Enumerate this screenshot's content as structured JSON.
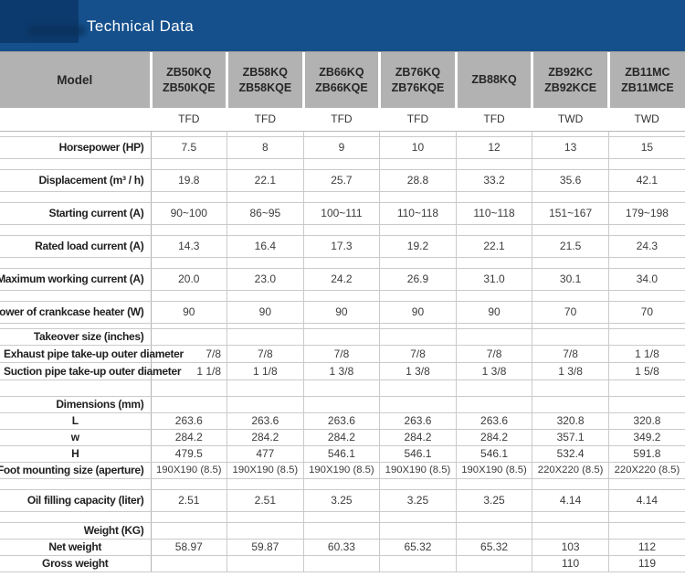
{
  "banner": {
    "title": "Technical Data"
  },
  "colors": {
    "banner_blue": "#15508c",
    "logo_navy": "#0c3a6e",
    "header_gray": "#b2b2b2",
    "grid_line": "#cacaca",
    "title_text": "#ffffff",
    "label_text": "#1f1f1f",
    "value_text": "#3c3c3c"
  },
  "table": {
    "model_label": "Model",
    "models": [
      [
        "ZB50KQ",
        "ZB50KQE"
      ],
      [
        "ZB58KQ",
        "ZB58KQE"
      ],
      [
        "ZB66KQ",
        "ZB66KQE"
      ],
      [
        "ZB76KQ",
        "ZB76KQE"
      ],
      [
        "ZB88KQ"
      ],
      [
        "ZB92KC",
        "ZB92KCE"
      ],
      [
        "ZB11MC",
        "ZB11MCE"
      ]
    ],
    "variants": [
      "TFD",
      "TFD",
      "TFD",
      "TFD",
      "TFD",
      "TWD",
      "TWD"
    ],
    "rows": [
      {
        "t": "sp_sm"
      },
      {
        "t": "item",
        "label": "Horsepower (HP)",
        "values": [
          "7.5",
          "8",
          "9",
          "10",
          "12",
          "13",
          "15"
        ]
      },
      {
        "t": "sp"
      },
      {
        "t": "item",
        "label": "Displacement (m³ / h)",
        "values": [
          "19.8",
          "22.1",
          "25.7",
          "28.8",
          "33.2",
          "35.6",
          "42.1"
        ]
      },
      {
        "t": "sp"
      },
      {
        "t": "item",
        "label": "Starting current (A)",
        "values": [
          "90~100",
          "86~95",
          "100~111",
          "110~118",
          "110~118",
          "151~167",
          "179~198"
        ]
      },
      {
        "t": "sp"
      },
      {
        "t": "item",
        "label": "Rated load current (A)",
        "values": [
          "14.3",
          "16.4",
          "17.3",
          "19.2",
          "22.1",
          "21.5",
          "24.3"
        ]
      },
      {
        "t": "sp"
      },
      {
        "t": "item",
        "label": "Maximum working current (A)",
        "values": [
          "20.0",
          "23.0",
          "24.2",
          "26.9",
          "31.0",
          "30.1",
          "34.0"
        ]
      },
      {
        "t": "sp"
      },
      {
        "t": "item",
        "label": "Power of crankcase heater (W)",
        "values": [
          "90",
          "90",
          "90",
          "90",
          "90",
          "70",
          "70"
        ]
      },
      {
        "t": "sp_sm"
      },
      {
        "t": "section",
        "label": "Takeover size (inches)",
        "values": [
          "",
          "",
          "",
          "",
          "",
          "",
          ""
        ]
      },
      {
        "t": "pipe",
        "label": "Exhaust pipe take-up outer diameter",
        "values": [
          "7/8",
          "7/8",
          "7/8",
          "7/8",
          "7/8",
          "7/8",
          "1 1/8"
        ]
      },
      {
        "t": "pipe",
        "label": "Suction pipe take-up outer diameter",
        "values": [
          "1 1/8",
          "1 1/8",
          "1 3/8",
          "1 3/8",
          "1 3/8",
          "1 3/8",
          "1 5/8"
        ]
      },
      {
        "t": "sp_lg"
      },
      {
        "t": "section",
        "label": "Dimensions  (mm)",
        "values": [
          "",
          "",
          "",
          "",
          "",
          "",
          ""
        ]
      },
      {
        "t": "sub",
        "label": "L",
        "values": [
          "263.6",
          "263.6",
          "263.6",
          "263.6",
          "263.6",
          "320.8",
          "320.8"
        ]
      },
      {
        "t": "sub",
        "label": "w",
        "values": [
          "284.2",
          "284.2",
          "284.2",
          "284.2",
          "284.2",
          "357.1",
          "349.2"
        ]
      },
      {
        "t": "sub",
        "label": "H",
        "values": [
          "479.5",
          "477",
          "546.1",
          "546.1",
          "546.1",
          "532.4",
          "591.8"
        ]
      },
      {
        "t": "item2",
        "label": "Foot mounting size (aperture)",
        "values": [
          "190X190 (8.5)",
          "190X190 (8.5)",
          "190X190 (8.5)",
          "190X190 (8.5)",
          "190X190 (8.5)",
          "220X220 (8.5)",
          "220X220 (8.5)"
        ]
      },
      {
        "t": "sp"
      },
      {
        "t": "item",
        "label": "Oil filling capacity (liter)",
        "values": [
          "2.51",
          "2.51",
          "3.25",
          "3.25",
          "3.25",
          "4.14",
          "4.14"
        ]
      },
      {
        "t": "sp"
      },
      {
        "t": "section",
        "label": "Weight (KG)",
        "values": [
          "",
          "",
          "",
          "",
          "",
          "",
          ""
        ]
      },
      {
        "t": "sub",
        "label": "Net weight",
        "values": [
          "58.97",
          "59.87",
          "60.33",
          "65.32",
          "65.32",
          "103",
          "112"
        ]
      },
      {
        "t": "sub",
        "label": "Gross weight",
        "values": [
          "",
          "",
          "",
          "",
          "",
          "110",
          "119"
        ]
      }
    ]
  }
}
